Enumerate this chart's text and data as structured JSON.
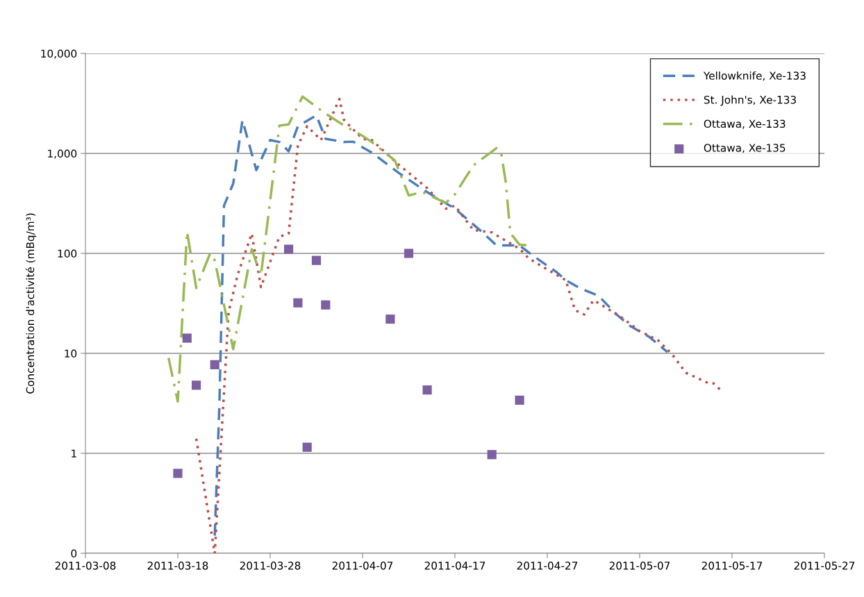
{
  "chart_data": {
    "type": "line",
    "ylabel": "Concentration d'activité (mBq/m³)",
    "log": "y",
    "grid": "y",
    "legend": "top right",
    "xlim": [
      "2011-03-08",
      "2011-05-27"
    ],
    "xticks": [
      "2011-03-08",
      "2011-03-18",
      "2011-03-28",
      "2011-04-07",
      "2011-04-17",
      "2011-04-27",
      "2011-05-07",
      "2011-05-17",
      "2011-05-27"
    ],
    "ylim": [
      0.1,
      10000
    ],
    "yticks": [
      {
        "value": 0.1,
        "label": "0"
      },
      1,
      10,
      100,
      {
        "value": 1000,
        "label": "1,000"
      },
      {
        "value": 10000,
        "label": "10,000"
      }
    ],
    "series": [
      {
        "name": "Yellowknife, Xe-133",
        "color": "#4a7ebb",
        "line_style": "dashed",
        "marker": "none",
        "x": [
          "2011-03-22",
          "2011-03-22T12:00",
          "2011-03-23",
          "2011-03-24",
          "2011-03-25",
          "2011-03-26T12:00",
          "2011-03-28",
          "2011-03-29",
          "2011-03-30",
          "2011-03-31",
          "2011-04-02",
          "2011-04-03",
          "2011-04-05",
          "2011-04-06",
          "2011-04-07",
          "2011-04-08",
          "2011-04-11",
          "2011-04-14",
          "2011-04-17",
          "2011-04-20",
          "2011-04-21T12:00",
          "2011-04-24",
          "2011-04-25T12:00",
          "2011-04-28",
          "2011-04-29",
          "2011-04-30T12:00",
          "2011-05-02",
          "2011-05-02T12:00",
          "2011-05-04T12:00",
          "2011-05-06",
          "2011-05-08",
          "2011-05-10"
        ],
        "values": [
          0.15,
          3,
          300,
          500,
          2150,
          680,
          1360,
          1300,
          1050,
          1870,
          2400,
          1400,
          1300,
          1310,
          1150,
          1020,
          630,
          410,
          280,
          162,
          120,
          120,
          94,
          65,
          54,
          45,
          39.5,
          38,
          24.5,
          18.7,
          14.7,
          10.3
        ]
      },
      {
        "name": "St. John's, Xe-133",
        "color": "#be4b48",
        "line_style": "dotted",
        "marker": "none",
        "x": [
          "2011-03-20",
          "2011-03-22",
          "2011-03-23T12:00",
          "2011-03-24T12:00",
          "2011-03-26",
          "2011-03-27",
          "2011-03-29",
          "2011-03-30",
          "2011-03-31",
          "2011-04-01",
          "2011-04-02T12:00",
          "2011-04-04T12:00",
          "2011-04-05",
          "2011-04-07",
          "2011-04-08",
          "2011-04-11",
          "2011-04-14",
          "2011-04-16",
          "2011-04-17",
          "2011-04-19",
          "2011-04-21",
          "2011-04-24",
          "2011-04-25",
          "2011-04-27",
          "2011-04-29",
          "2011-04-30",
          "2011-05-01",
          "2011-05-02",
          "2011-05-03",
          "2011-05-05",
          "2011-05-07",
          "2011-05-09",
          "2011-05-10T12:00",
          "2011-05-12",
          "2011-05-14T12:00",
          "2011-05-15",
          "2011-05-16"
        ],
        "values": [
          1.4,
          0.1,
          26,
          62,
          158,
          46,
          147,
          158,
          1200,
          1870,
          1360,
          3500,
          2150,
          1400,
          1360,
          760,
          450,
          280,
          300,
          171,
          162,
          111,
          89,
          69,
          54,
          27,
          24.5,
          34,
          30,
          23,
          16.7,
          13.5,
          9.8,
          6.4,
          5.0,
          5.0,
          4.1
        ]
      },
      {
        "name": "Ottawa, Xe-133",
        "color": "#98b954",
        "line_style": "dashdot",
        "marker": "none",
        "x": [
          "2011-03-17",
          "2011-03-18",
          "2011-03-19",
          "2011-03-20",
          "2011-03-21T12:00",
          "2011-03-22",
          "2011-03-24",
          "2011-03-26",
          "2011-03-27",
          "2011-03-29",
          "2011-03-30",
          "2011-03-31T12:00",
          "2011-04-03",
          "2011-04-05",
          "2011-04-07",
          "2011-04-08",
          "2011-04-10T12:00",
          "2011-04-12",
          "2011-04-13T12:00",
          "2011-04-16",
          "2011-04-17",
          "2011-04-19",
          "2011-04-21T12:00",
          "2011-04-22",
          "2011-04-22T12:00",
          "2011-04-23",
          "2011-04-24",
          "2011-04-25"
        ],
        "values": [
          9,
          3.3,
          165,
          45,
          100,
          85,
          11,
          110,
          60,
          1900,
          1950,
          3700,
          2500,
          1900,
          1500,
          1300,
          850,
          380,
          410,
          320,
          390,
          760,
          1130,
          1020,
          520,
          160,
          122,
          120
        ]
      },
      {
        "name": "Ottawa, Xe-135",
        "type": "scatter",
        "color": "#7d60a0",
        "marker": "square",
        "x": [
          "2011-03-18",
          "2011-03-19",
          "2011-03-20",
          "2011-03-22",
          "2011-03-30",
          "2011-03-31",
          "2011-04-01",
          "2011-04-02",
          "2011-04-03",
          "2011-04-10",
          "2011-04-12",
          "2011-04-14",
          "2011-04-21",
          "2011-04-24"
        ],
        "values": [
          0.63,
          14.2,
          4.8,
          7.7,
          110,
          32,
          1.15,
          85,
          30.5,
          22,
          100,
          4.3,
          0.97,
          3.4
        ]
      }
    ]
  }
}
